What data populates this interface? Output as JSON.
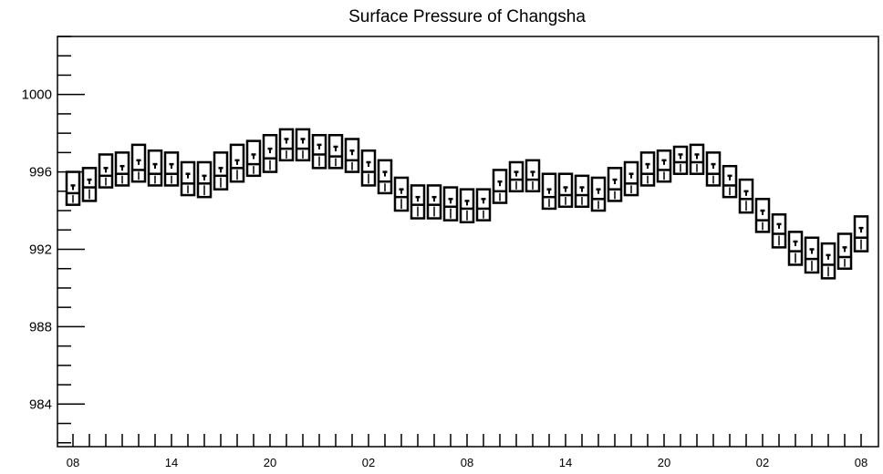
{
  "chart_data": {
    "type": "boxplot",
    "title": "Surface Pressure of Changsha",
    "xlabel": "",
    "ylabel": "",
    "ylim": [
      981.8,
      1003.0
    ],
    "y_ticks": [
      984,
      988,
      992,
      996,
      1000
    ],
    "y_tick_labels": [
      "984",
      "988",
      "992",
      "996",
      "1000"
    ],
    "x_tick_labels": [
      "08",
      "14",
      "20",
      "02",
      "08",
      "14",
      "20",
      "02",
      "08"
    ],
    "x_tick_steps": [
      0,
      6,
      12,
      18,
      24,
      30,
      36,
      42,
      48
    ],
    "grid": false,
    "legend": "none",
    "box_color": "#000000",
    "series": [
      {
        "hour": 0,
        "q1": 994.3,
        "median": 994.9,
        "q3": 996.0,
        "mean": 995.3
      },
      {
        "hour": 1,
        "q1": 994.5,
        "median": 995.2,
        "q3": 996.2,
        "mean": 995.6
      },
      {
        "hour": 2,
        "q1": 995.2,
        "median": 995.8,
        "q3": 996.9,
        "mean": 996.2
      },
      {
        "hour": 3,
        "q1": 995.3,
        "median": 995.9,
        "q3": 997.0,
        "mean": 996.3
      },
      {
        "hour": 4,
        "q1": 995.5,
        "median": 996.1,
        "q3": 997.4,
        "mean": 996.6
      },
      {
        "hour": 5,
        "q1": 995.3,
        "median": 995.9,
        "q3": 997.1,
        "mean": 996.4
      },
      {
        "hour": 6,
        "q1": 995.3,
        "median": 995.9,
        "q3": 997.0,
        "mean": 996.4
      },
      {
        "hour": 7,
        "q1": 994.8,
        "median": 995.4,
        "q3": 996.5,
        "mean": 995.9
      },
      {
        "hour": 8,
        "q1": 994.7,
        "median": 995.4,
        "q3": 996.5,
        "mean": 995.8
      },
      {
        "hour": 9,
        "q1": 995.1,
        "median": 995.8,
        "q3": 997.0,
        "mean": 996.2
      },
      {
        "hour": 10,
        "q1": 995.5,
        "median": 996.2,
        "q3": 997.4,
        "mean": 996.6
      },
      {
        "hour": 11,
        "q1": 995.8,
        "median": 996.4,
        "q3": 997.6,
        "mean": 996.9
      },
      {
        "hour": 12,
        "q1": 996.0,
        "median": 996.7,
        "q3": 997.9,
        "mean": 997.2
      },
      {
        "hour": 13,
        "q1": 996.6,
        "median": 997.2,
        "q3": 998.2,
        "mean": 997.7
      },
      {
        "hour": 14,
        "q1": 996.6,
        "median": 997.2,
        "q3": 998.2,
        "mean": 997.7
      },
      {
        "hour": 15,
        "q1": 996.2,
        "median": 996.9,
        "q3": 997.9,
        "mean": 997.4
      },
      {
        "hour": 16,
        "q1": 996.2,
        "median": 996.8,
        "q3": 997.9,
        "mean": 997.3
      },
      {
        "hour": 17,
        "q1": 996.0,
        "median": 996.6,
        "q3": 997.7,
        "mean": 997.1
      },
      {
        "hour": 18,
        "q1": 995.3,
        "median": 996.0,
        "q3": 997.1,
        "mean": 996.5
      },
      {
        "hour": 19,
        "q1": 994.9,
        "median": 995.5,
        "q3": 996.6,
        "mean": 996.0
      },
      {
        "hour": 20,
        "q1": 994.0,
        "median": 994.7,
        "q3": 995.7,
        "mean": 995.1
      },
      {
        "hour": 21,
        "q1": 993.6,
        "median": 994.3,
        "q3": 995.3,
        "mean": 994.7
      },
      {
        "hour": 22,
        "q1": 993.6,
        "median": 994.3,
        "q3": 995.3,
        "mean": 994.7
      },
      {
        "hour": 23,
        "q1": 993.5,
        "median": 994.2,
        "q3": 995.2,
        "mean": 994.6
      },
      {
        "hour": 24,
        "q1": 993.4,
        "median": 994.1,
        "q3": 995.1,
        "mean": 994.5
      },
      {
        "hour": 25,
        "q1": 993.5,
        "median": 994.1,
        "q3": 995.1,
        "mean": 994.6
      },
      {
        "hour": 26,
        "q1": 994.4,
        "median": 995.0,
        "q3": 996.1,
        "mean": 995.5
      },
      {
        "hour": 27,
        "q1": 995.0,
        "median": 995.6,
        "q3": 996.5,
        "mean": 996.0
      },
      {
        "hour": 28,
        "q1": 995.0,
        "median": 995.6,
        "q3": 996.6,
        "mean": 996.0
      },
      {
        "hour": 29,
        "q1": 994.1,
        "median": 994.7,
        "q3": 995.9,
        "mean": 995.1
      },
      {
        "hour": 30,
        "q1": 994.2,
        "median": 994.8,
        "q3": 995.9,
        "mean": 995.2
      },
      {
        "hour": 31,
        "q1": 994.2,
        "median": 994.8,
        "q3": 995.8,
        "mean": 995.2
      },
      {
        "hour": 32,
        "q1": 994.0,
        "median": 994.6,
        "q3": 995.7,
        "mean": 995.1
      },
      {
        "hour": 33,
        "q1": 994.5,
        "median": 995.1,
        "q3": 996.2,
        "mean": 995.6
      },
      {
        "hour": 34,
        "q1": 994.8,
        "median": 995.4,
        "q3": 996.5,
        "mean": 995.9
      },
      {
        "hour": 35,
        "q1": 995.3,
        "median": 995.9,
        "q3": 997.0,
        "mean": 996.4
      },
      {
        "hour": 36,
        "q1": 995.5,
        "median": 996.1,
        "q3": 997.1,
        "mean": 996.6
      },
      {
        "hour": 37,
        "q1": 995.9,
        "median": 996.5,
        "q3": 997.3,
        "mean": 996.9
      },
      {
        "hour": 38,
        "q1": 995.9,
        "median": 996.5,
        "q3": 997.4,
        "mean": 996.9
      },
      {
        "hour": 39,
        "q1": 995.3,
        "median": 995.9,
        "q3": 997.0,
        "mean": 996.4
      },
      {
        "hour": 40,
        "q1": 994.7,
        "median": 995.3,
        "q3": 996.3,
        "mean": 995.8
      },
      {
        "hour": 41,
        "q1": 993.9,
        "median": 994.6,
        "q3": 995.6,
        "mean": 995.0
      },
      {
        "hour": 42,
        "q1": 992.9,
        "median": 993.5,
        "q3": 994.6,
        "mean": 994.0
      },
      {
        "hour": 43,
        "q1": 992.1,
        "median": 992.8,
        "q3": 993.8,
        "mean": 993.3
      },
      {
        "hour": 44,
        "q1": 991.2,
        "median": 991.9,
        "q3": 992.9,
        "mean": 992.4
      },
      {
        "hour": 45,
        "q1": 990.8,
        "median": 991.5,
        "q3": 992.6,
        "mean": 992.0
      },
      {
        "hour": 46,
        "q1": 990.5,
        "median": 991.2,
        "q3": 992.3,
        "mean": 991.7
      },
      {
        "hour": 47,
        "q1": 991.0,
        "median": 991.6,
        "q3": 992.8,
        "mean": 992.1
      },
      {
        "hour": 48,
        "q1": 991.9,
        "median": 992.6,
        "q3": 993.7,
        "mean": 993.1
      }
    ]
  }
}
